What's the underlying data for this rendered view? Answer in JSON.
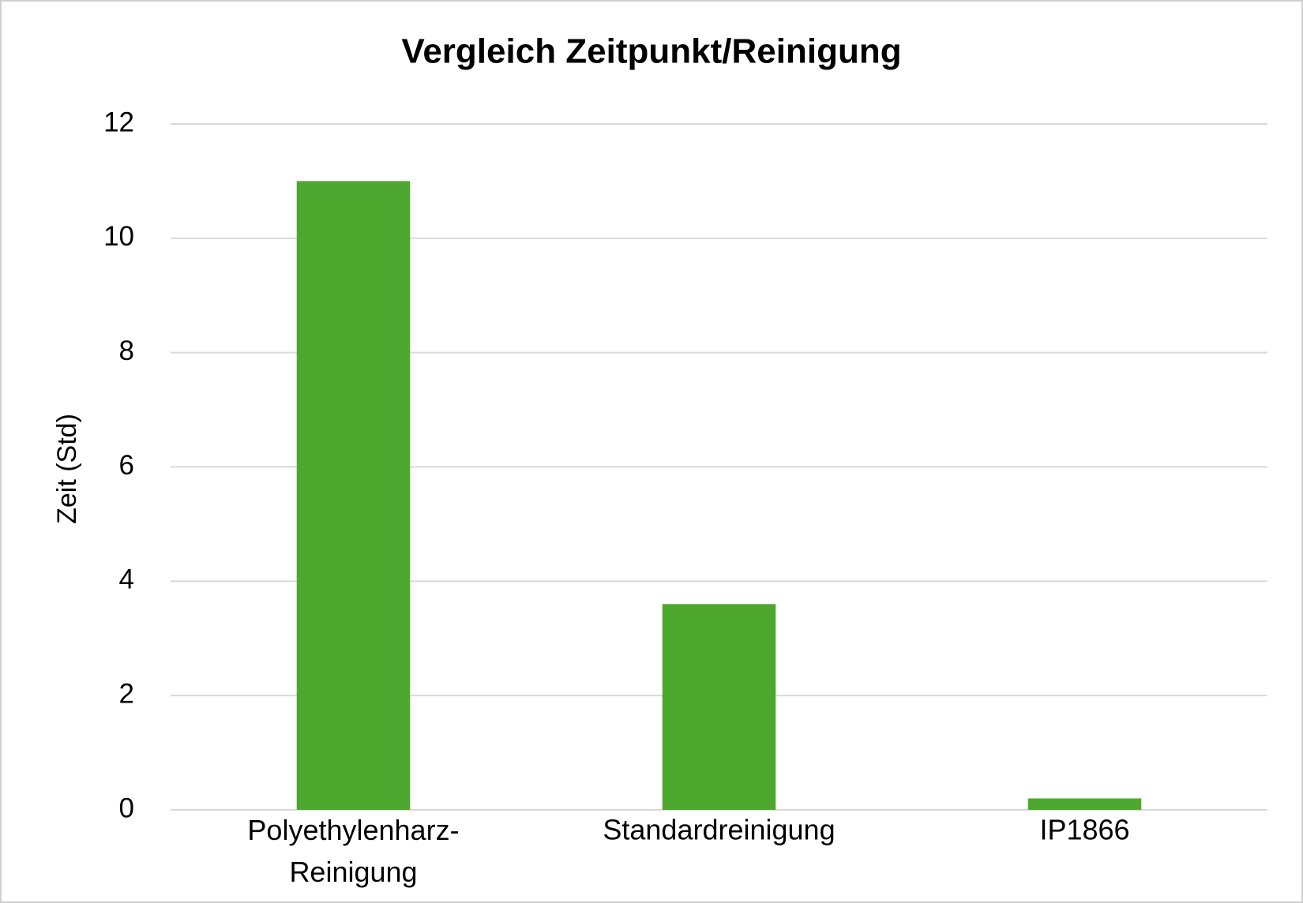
{
  "chart_data": {
    "type": "bar",
    "title": "Vergleich Zeitpunkt/Reinigung",
    "y_label": "Zeit (Std)",
    "categories": [
      "Polyethylenharz-Reinigung",
      "Standardreinigung",
      "IP1866"
    ],
    "values": [
      11,
      3.6,
      0.2
    ],
    "color": "#4ea72e",
    "ylim": [
      0,
      12
    ],
    "yticks": [
      0,
      2,
      4,
      6,
      8,
      10,
      12
    ],
    "grid": true
  }
}
